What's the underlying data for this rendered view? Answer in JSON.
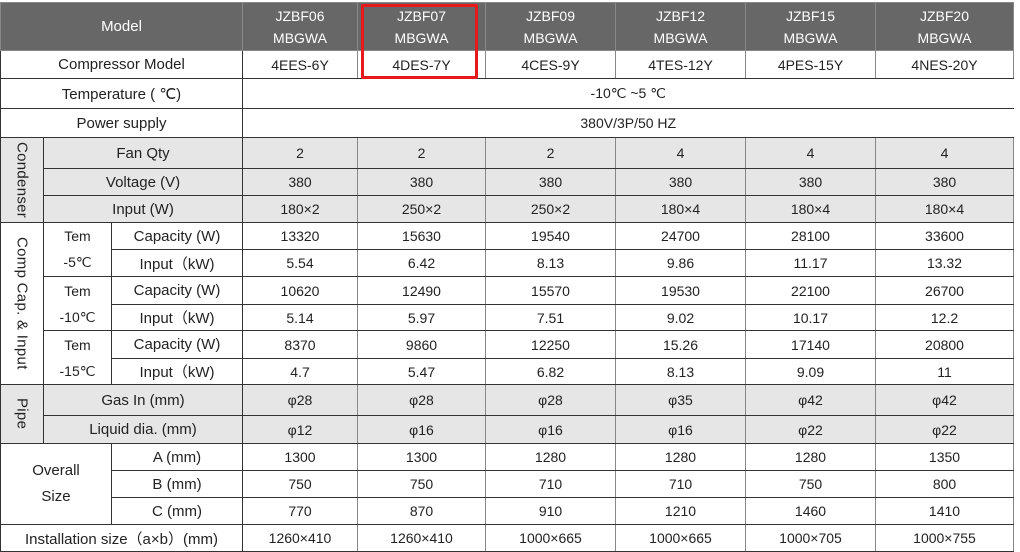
{
  "highlight_color": "#e8191a",
  "header_color": "#676767",
  "labels": {
    "model": "Model",
    "compressor_model": "Compressor Model",
    "temperature": "Temperature ( ℃)",
    "power_supply": "Power supply",
    "condenser": "Condenser",
    "fan_qty": "Fan Qty",
    "voltage": "Voltage (V)",
    "input_w": "Input (W)",
    "comp_cap_input": "Comp Cap. & Input",
    "tem": "Tem",
    "tem_m5": "-5℃",
    "tem_m10": "-10℃",
    "tem_m15": "-15℃",
    "capacity": "Capacity (W)",
    "input_kw": "Input（kW)",
    "pipe": "Pipe",
    "gas_in": "Gas In (mm)",
    "liquid_dia": "Liquid dia. (mm)",
    "overall": "Overall",
    "size": "Size",
    "a_mm": "A (mm)",
    "b_mm": "B (mm)",
    "c_mm": "C (mm)",
    "installation_size": "Installation size（a×b）(mm)"
  },
  "models": [
    {
      "line1": "JZBF06",
      "line2": "MBGWA"
    },
    {
      "line1": "JZBF07",
      "line2": "MBGWA"
    },
    {
      "line1": "JZBF09",
      "line2": "MBGWA"
    },
    {
      "line1": "JZBF12",
      "line2": "MBGWA"
    },
    {
      "line1": "JZBF15",
      "line2": "MBGWA"
    },
    {
      "line1": "JZBF20",
      "line2": "MBGWA"
    }
  ],
  "highlighted_model": "JZBF07 MBGWA",
  "temperature_range": "-10℃ ~5 ℃",
  "power_supply": "380V/3P/50 HZ",
  "rows": {
    "compressor_model": [
      "4EES-6Y",
      "4DES-7Y",
      "4CES-9Y",
      "4TES-12Y",
      "4PES-15Y",
      "4NES-20Y"
    ],
    "fan_qty": [
      "2",
      "2",
      "2",
      "4",
      "4",
      "4"
    ],
    "voltage": [
      "380",
      "380",
      "380",
      "380",
      "380",
      "380"
    ],
    "fan_input": [
      "180×2",
      "250×2",
      "250×2",
      "180×4",
      "180×4",
      "180×4"
    ],
    "cap_m5": [
      "13320",
      "15630",
      "19540",
      "24700",
      "28100",
      "33600"
    ],
    "input_m5": [
      "5.54",
      "6.42",
      "8.13",
      "9.86",
      "11.17",
      "13.32"
    ],
    "cap_m10": [
      "10620",
      "12490",
      "15570",
      "19530",
      "22100",
      "26700"
    ],
    "input_m10": [
      "5.14",
      "5.97",
      "7.51",
      "9.02",
      "10.17",
      "12.2"
    ],
    "cap_m15": [
      "8370",
      "9860",
      "12250",
      "15.26",
      "17140",
      "20800"
    ],
    "input_m15": [
      "4.7",
      "5.47",
      "6.82",
      "8.13",
      "9.09",
      "11"
    ],
    "gas_in": [
      "φ28",
      "φ28",
      "φ28",
      "φ35",
      "φ42",
      "φ42"
    ],
    "liquid_dia": [
      "φ12",
      "φ16",
      "φ16",
      "φ16",
      "φ22",
      "φ22"
    ],
    "size_a": [
      "1300",
      "1300",
      "1280",
      "1280",
      "1280",
      "1350"
    ],
    "size_b": [
      "750",
      "750",
      "710",
      "710",
      "750",
      "800"
    ],
    "size_c": [
      "770",
      "870",
      "910",
      "1210",
      "1460",
      "1410"
    ],
    "installation_size": [
      "1260×410",
      "1260×410",
      "1000×665",
      "1000×665",
      "1000×705",
      "1000×755"
    ]
  }
}
